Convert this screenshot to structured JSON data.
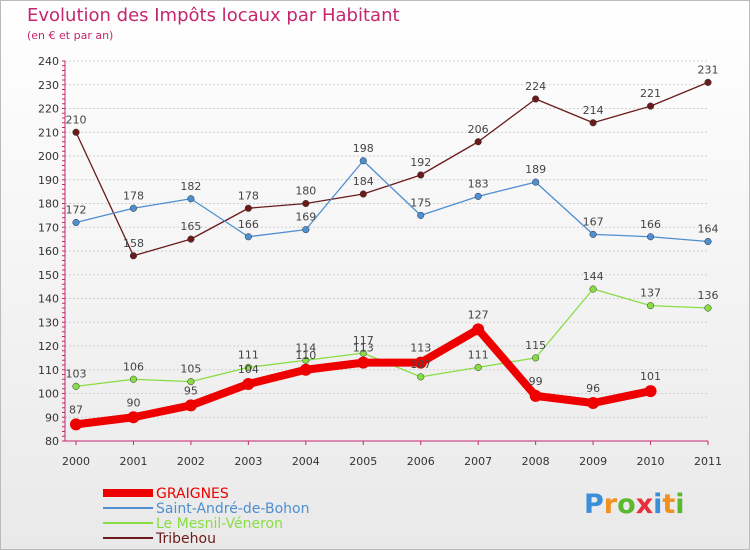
{
  "chart_data": {
    "type": "line",
    "title": "Evolution des Impôts locaux par Habitant",
    "subtitle": "(en € et par an)",
    "x": [
      "2000",
      "2001",
      "2002",
      "2003",
      "2004",
      "2005",
      "2006",
      "2007",
      "2008",
      "2009",
      "2010",
      "2011"
    ],
    "ylim": [
      80,
      240
    ],
    "yticks": [
      80,
      90,
      100,
      110,
      120,
      130,
      140,
      150,
      160,
      170,
      180,
      190,
      200,
      210,
      220,
      230,
      240
    ],
    "series": [
      {
        "name": "GRAIGNES",
        "color": "#ee0000",
        "values": [
          87,
          90,
          95,
          104,
          110,
          113,
          113,
          127,
          99,
          96,
          101,
          null
        ]
      },
      {
        "name": "Saint-André-de-Bohon",
        "color": "#4f8fd0",
        "values": [
          172,
          178,
          182,
          166,
          169,
          198,
          175,
          183,
          189,
          167,
          166,
          164
        ]
      },
      {
        "name": "Le Mesnil-Véneron",
        "color": "#88dd44",
        "values": [
          103,
          106,
          105,
          111,
          114,
          117,
          107,
          111,
          115,
          144,
          137,
          136
        ]
      },
      {
        "name": "Tribehou",
        "color": "#6b1b1b",
        "values": [
          210,
          158,
          165,
          178,
          180,
          184,
          192,
          206,
          224,
          214,
          221,
          231
        ]
      }
    ],
    "legend_position": "bottom-left"
  },
  "logo": {
    "letters": [
      "P",
      "r",
      "o",
      "x",
      "i",
      "t",
      "i"
    ],
    "colors": [
      "#3a8fd8",
      "#f09020",
      "#5cb82e",
      "#e8303c",
      "#3a8fd8",
      "#f09020",
      "#5cb82e"
    ]
  }
}
